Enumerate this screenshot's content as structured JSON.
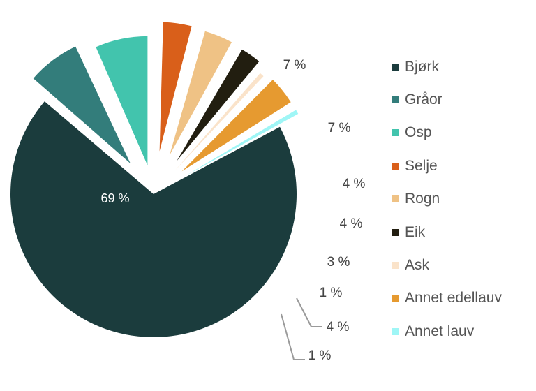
{
  "chart_data": {
    "type": "pie",
    "legend_position": "right",
    "slices": [
      {
        "name": "Bjørk",
        "value": 69,
        "label": "69 %",
        "color": "#1b3c3d"
      },
      {
        "name": "Gråor",
        "value": 7,
        "label": "7 %",
        "color": "#337d7b"
      },
      {
        "name": "Osp",
        "value": 7,
        "label": "7 %",
        "color": "#42c4ad"
      },
      {
        "name": "Selje",
        "value": 4,
        "label": "4 %",
        "color": "#d95f1a"
      },
      {
        "name": "Rogn",
        "value": 4,
        "label": "4 %",
        "color": "#efc285"
      },
      {
        "name": "Eik",
        "value": 3,
        "label": "3 %",
        "color": "#221e10"
      },
      {
        "name": "Ask",
        "value": 1,
        "label": "1 %",
        "color": "#fae3ca"
      },
      {
        "name": "Annet edellauv",
        "value": 4,
        "label": "4 %",
        "color": "#e69a30"
      },
      {
        "name": "Annet lauv",
        "value": 1,
        "label": "1 %",
        "color": "#9ff6f6"
      }
    ]
  }
}
